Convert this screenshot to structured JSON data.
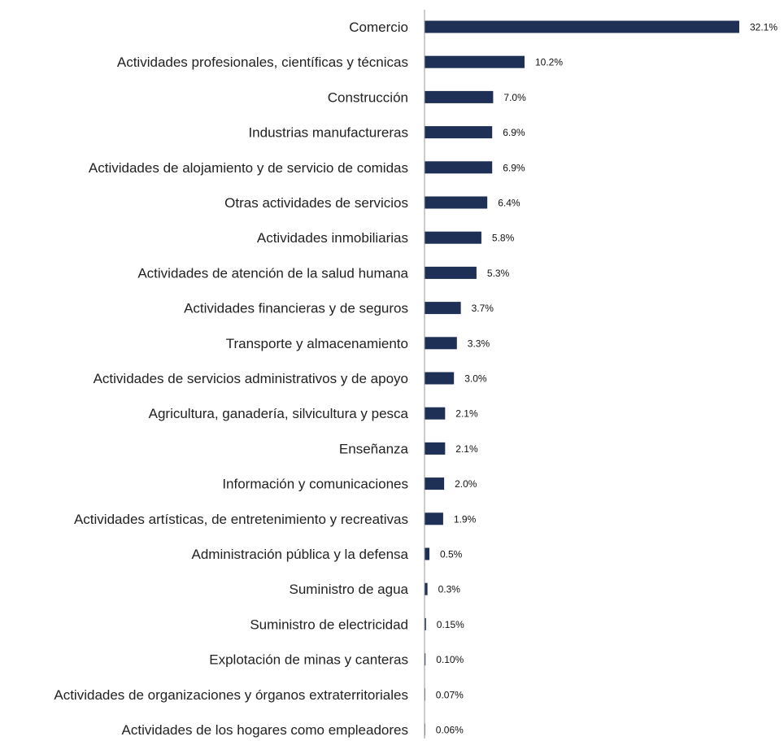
{
  "chart_data": {
    "type": "bar",
    "orientation": "horizontal",
    "categories": [
      "Comercio",
      "Actividades profesionales, científicas y técnicas",
      "Construcción",
      "Industrias manufactureras",
      "Actividades de alojamiento y de servicio de comidas",
      "Otras actividades de servicios",
      "Actividades inmobiliarias",
      "Actividades de atención de la salud humana",
      "Actividades financieras y de seguros",
      "Transporte y almacenamiento",
      "Actividades de servicios administrativos y de apoyo",
      "Agricultura, ganadería, silvicultura y pesca",
      "Enseñanza",
      "Información y comunicaciones",
      "Actividades artísticas, de entretenimiento y recreativas",
      "Administración pública y la defensa",
      "Suministro de agua",
      "Suministro de electricidad",
      "Explotación de minas y canteras",
      "Actividades de organizaciones y órganos extraterritoriales",
      "Actividades de los hogares como empleadores"
    ],
    "values": [
      32.1,
      10.2,
      7.0,
      6.9,
      6.9,
      6.4,
      5.8,
      5.3,
      3.7,
      3.3,
      3.0,
      2.1,
      2.1,
      2.0,
      1.9,
      0.5,
      0.3,
      0.15,
      0.1,
      0.07,
      0.06
    ],
    "value_labels": [
      "32.1%",
      "10.2%",
      "7.0%",
      "6.9%",
      "6.9%",
      "6.4%",
      "5.8%",
      "5.3%",
      "3.7%",
      "3.3%",
      "3.0%",
      "2.1%",
      "2.1%",
      "2.0%",
      "1.9%",
      "0.5%",
      "0.3%",
      "0.15%",
      "0.10%",
      "0.07%",
      "0.06%"
    ],
    "unit": "%",
    "xlim": [
      0,
      32.1
    ],
    "grid": false,
    "legend": "none",
    "bar_color": "#1f3057",
    "axis_color": "#9a9a9a"
  }
}
